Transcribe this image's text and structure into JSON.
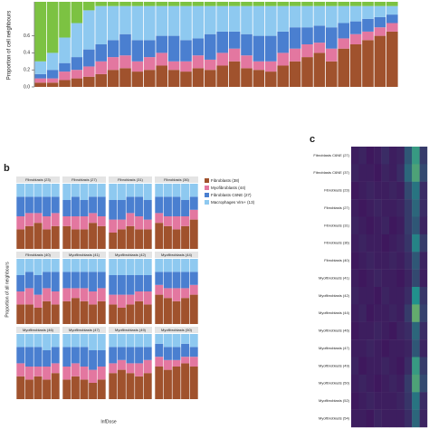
{
  "chart_data": [
    {
      "type": "bar",
      "stacked": true,
      "ylabel": "Proportion of cell neighbours",
      "categories": [
        null,
        null,
        null,
        null,
        null,
        null,
        null,
        null,
        null,
        null,
        null,
        null,
        null,
        null,
        null,
        null,
        null,
        null,
        null,
        null,
        null,
        null,
        null,
        null,
        null,
        null,
        null,
        null,
        null,
        null
      ],
      "series": [
        {
          "color": "#a0522d",
          "values": [
            0.05,
            0.05,
            0.08,
            0.1,
            0.12,
            0.15,
            0.2,
            0.22,
            0.18,
            0.2,
            0.25,
            0.2,
            0.18,
            0.22,
            0.2,
            0.25,
            0.3,
            0.22,
            0.2,
            0.18,
            0.25,
            0.3,
            0.35,
            0.4,
            0.3,
            0.45,
            0.5,
            0.55,
            0.6,
            0.65
          ]
        },
        {
          "color": "#e377a0",
          "values": [
            0.05,
            0.05,
            0.1,
            0.1,
            0.12,
            0.15,
            0.15,
            0.15,
            0.12,
            0.15,
            0.15,
            0.1,
            0.12,
            0.15,
            0.12,
            0.15,
            0.15,
            0.15,
            0.1,
            0.12,
            0.15,
            0.15,
            0.15,
            0.12,
            0.15,
            0.12,
            0.12,
            0.1,
            0.1,
            0.1
          ]
        },
        {
          "color": "#4a7fd0",
          "values": [
            0.05,
            0.1,
            0.1,
            0.15,
            0.2,
            0.2,
            0.2,
            0.25,
            0.25,
            0.2,
            0.2,
            0.3,
            0.25,
            0.2,
            0.3,
            0.25,
            0.2,
            0.25,
            0.3,
            0.3,
            0.25,
            0.25,
            0.2,
            0.2,
            0.25,
            0.18,
            0.15,
            0.15,
            0.12,
            0.1
          ]
        },
        {
          "color": "#8ec9f0",
          "values": [
            0.15,
            0.2,
            0.3,
            0.4,
            0.46,
            0.45,
            0.4,
            0.33,
            0.4,
            0.4,
            0.35,
            0.35,
            0.4,
            0.38,
            0.33,
            0.3,
            0.3,
            0.33,
            0.35,
            0.35,
            0.3,
            0.25,
            0.25,
            0.23,
            0.25,
            0.2,
            0.18,
            0.15,
            0.13,
            0.1
          ]
        },
        {
          "color": "#7cc242",
          "values": [
            0.7,
            0.6,
            0.42,
            0.25,
            0.1,
            0.05,
            0.05,
            0.05,
            0.05,
            0.05,
            0.05,
            0.05,
            0.05,
            0.05,
            0.05,
            0.05,
            0.05,
            0.05,
            0.05,
            0.05,
            0.05,
            0.05,
            0.05,
            0.05,
            0.05,
            0.05,
            0.05,
            0.05,
            0.05,
            0.05
          ]
        }
      ],
      "ylim": [
        0,
        1
      ],
      "yticks": [
        {
          "value": 0,
          "label": "0.0"
        },
        0.2,
        0.4,
        0.6
      ]
    },
    {
      "type": "bar-grid",
      "stacked": true,
      "panel_label": "b",
      "ylabel": "Proportion of all neighbours",
      "xlabel": "InfDose",
      "series": [
        {
          "name": "Fibroblasts (38)",
          "color": "#a0522d"
        },
        {
          "name": "Myofibroblasts (44)",
          "color": "#e377a0"
        },
        {
          "name": "Fibroblasts C6NE (27)",
          "color": "#4a7fd0"
        },
        {
          "name": "Macrophages Vim+ (13)",
          "color": "#8ec9f0"
        }
      ],
      "ylim": [
        0,
        1
      ],
      "panels": [
        {
          "title": "Fibroblasts (23)",
          "values": [
            [
              0.3,
              0.35,
              0.4,
              0.3,
              0.35
            ],
            [
              0.2,
              0.2,
              0.15,
              0.2,
              0.2
            ],
            [
              0.3,
              0.25,
              0.25,
              0.3,
              0.25
            ],
            [
              0.2,
              0.2,
              0.2,
              0.2,
              0.2
            ]
          ]
        },
        {
          "title": "Fibroblasts (27)",
          "values": [
            [
              0.35,
              0.3,
              0.3,
              0.4,
              0.35
            ],
            [
              0.15,
              0.2,
              0.2,
              0.15,
              0.15
            ],
            [
              0.25,
              0.3,
              0.25,
              0.25,
              0.3
            ],
            [
              0.25,
              0.2,
              0.25,
              0.2,
              0.2
            ]
          ]
        },
        {
          "title": "Fibroblasts (31)",
          "values": [
            [
              0.25,
              0.3,
              0.35,
              0.3,
              0.3
            ],
            [
              0.2,
              0.15,
              0.2,
              0.2,
              0.15
            ],
            [
              0.3,
              0.3,
              0.25,
              0.3,
              0.3
            ],
            [
              0.25,
              0.25,
              0.2,
              0.2,
              0.25
            ]
          ]
        },
        {
          "title": "Fibroblasts (36)",
          "values": [
            [
              0.4,
              0.35,
              0.3,
              0.35,
              0.45
            ],
            [
              0.15,
              0.15,
              0.2,
              0.15,
              0.15
            ],
            [
              0.25,
              0.3,
              0.3,
              0.25,
              0.2
            ],
            [
              0.2,
              0.2,
              0.2,
              0.25,
              0.2
            ]
          ]
        },
        {
          "title": "Fibroblasts (40)",
          "values": [
            [
              0.3,
              0.3,
              0.25,
              0.35,
              0.3
            ],
            [
              0.2,
              0.25,
              0.2,
              0.2,
              0.2
            ],
            [
              0.25,
              0.25,
              0.3,
              0.25,
              0.3
            ],
            [
              0.25,
              0.2,
              0.25,
              0.2,
              0.2
            ]
          ]
        },
        {
          "title": "Myofibroblasts (41)",
          "values": [
            [
              0.35,
              0.4,
              0.35,
              0.3,
              0.35
            ],
            [
              0.2,
              0.15,
              0.2,
              0.2,
              0.2
            ],
            [
              0.25,
              0.25,
              0.25,
              0.3,
              0.25
            ],
            [
              0.2,
              0.2,
              0.2,
              0.2,
              0.2
            ]
          ]
        },
        {
          "title": "Myofibroblasts (42)",
          "values": [
            [
              0.3,
              0.25,
              0.3,
              0.35,
              0.3
            ],
            [
              0.15,
              0.2,
              0.15,
              0.15,
              0.2
            ],
            [
              0.3,
              0.3,
              0.3,
              0.25,
              0.25
            ],
            [
              0.25,
              0.25,
              0.25,
              0.25,
              0.25
            ]
          ]
        },
        {
          "title": "Myofibroblasts (44)",
          "values": [
            [
              0.45,
              0.4,
              0.35,
              0.4,
              0.45
            ],
            [
              0.15,
              0.15,
              0.2,
              0.15,
              0.15
            ],
            [
              0.2,
              0.25,
              0.25,
              0.25,
              0.2
            ],
            [
              0.2,
              0.2,
              0.2,
              0.2,
              0.2
            ]
          ]
        },
        {
          "title": "Myofibroblasts (46)",
          "values": [
            [
              0.35,
              0.3,
              0.35,
              0.3,
              0.4
            ],
            [
              0.2,
              0.2,
              0.15,
              0.2,
              0.15
            ],
            [
              0.25,
              0.3,
              0.3,
              0.25,
              0.25
            ],
            [
              0.2,
              0.2,
              0.2,
              0.25,
              0.2
            ]
          ]
        },
        {
          "title": "Myofibroblasts (47)",
          "values": [
            [
              0.3,
              0.35,
              0.3,
              0.25,
              0.3
            ],
            [
              0.2,
              0.2,
              0.2,
              0.2,
              0.2
            ],
            [
              0.3,
              0.25,
              0.3,
              0.3,
              0.25
            ],
            [
              0.2,
              0.2,
              0.2,
              0.25,
              0.25
            ]
          ]
        },
        {
          "title": "Myofibroblasts (49)",
          "values": [
            [
              0.4,
              0.45,
              0.4,
              0.35,
              0.4
            ],
            [
              0.15,
              0.15,
              0.15,
              0.2,
              0.2
            ],
            [
              0.25,
              0.2,
              0.25,
              0.25,
              0.2
            ],
            [
              0.2,
              0.2,
              0.2,
              0.2,
              0.2
            ]
          ]
        },
        {
          "title": "Myofibroblasts (50)",
          "values": [
            [
              0.5,
              0.45,
              0.5,
              0.55,
              0.5
            ],
            [
              0.15,
              0.15,
              0.1,
              0.1,
              0.15
            ],
            [
              0.2,
              0.2,
              0.2,
              0.2,
              0.15
            ],
            [
              0.15,
              0.2,
              0.2,
              0.15,
              0.2
            ]
          ]
        }
      ]
    },
    {
      "type": "heatmap",
      "panel_label": "c",
      "colormap": [
        "#440154",
        "#21918c",
        "#fde725"
      ],
      "zlim": [
        0,
        1
      ],
      "rows": [
        "Fibroblasts C6NE (27)",
        "Fibroblasts C6NE (37)",
        "Fibroblasts (23)",
        "Fibroblasts (27)",
        "Fibroblasts (31)",
        "Fibroblasts (36)",
        "Fibroblasts (40)",
        "Myofibroblasts (41)",
        "Myofibroblasts (42)",
        "Myofibroblasts (44)",
        "Myofibroblasts (46)",
        "Myofibroblasts (47)",
        "Myofibroblasts (49)",
        "Myofibroblasts (50)",
        "Myofibroblasts (52)",
        "Myofibroblasts (54)"
      ],
      "values": [
        [
          0.1,
          0.12,
          0.08,
          0.1,
          0.15,
          0.1,
          0.12,
          0.3,
          0.55,
          0.2
        ],
        [
          0.12,
          0.1,
          0.1,
          0.08,
          0.12,
          0.1,
          0.15,
          0.35,
          0.6,
          0.25
        ],
        [
          0.08,
          0.1,
          0.12,
          0.1,
          0.1,
          0.12,
          0.1,
          0.25,
          0.4,
          0.15
        ],
        [
          0.1,
          0.08,
          0.1,
          0.12,
          0.1,
          0.1,
          0.12,
          0.2,
          0.35,
          0.15
        ],
        [
          0.12,
          0.1,
          0.08,
          0.1,
          0.12,
          0.08,
          0.1,
          0.2,
          0.3,
          0.12
        ],
        [
          0.1,
          0.12,
          0.1,
          0.1,
          0.08,
          0.1,
          0.12,
          0.18,
          0.45,
          0.2
        ],
        [
          0.08,
          0.1,
          0.12,
          0.1,
          0.1,
          0.12,
          0.1,
          0.15,
          0.3,
          0.12
        ],
        [
          0.1,
          0.08,
          0.1,
          0.12,
          0.1,
          0.1,
          0.08,
          0.12,
          0.25,
          0.1
        ],
        [
          0.12,
          0.1,
          0.1,
          0.08,
          0.12,
          0.1,
          0.1,
          0.15,
          0.5,
          0.18
        ],
        [
          0.1,
          0.12,
          0.08,
          0.1,
          0.1,
          0.12,
          0.1,
          0.2,
          0.65,
          0.22
        ],
        [
          0.08,
          0.1,
          0.1,
          0.12,
          0.1,
          0.08,
          0.12,
          0.15,
          0.35,
          0.15
        ],
        [
          0.1,
          0.1,
          0.12,
          0.1,
          0.08,
          0.1,
          0.1,
          0.12,
          0.3,
          0.12
        ],
        [
          0.12,
          0.08,
          0.1,
          0.1,
          0.12,
          0.1,
          0.08,
          0.15,
          0.55,
          0.2
        ],
        [
          0.1,
          0.12,
          0.1,
          0.08,
          0.1,
          0.12,
          0.1,
          0.2,
          0.6,
          0.25
        ],
        [
          0.08,
          0.1,
          0.12,
          0.1,
          0.1,
          0.1,
          0.12,
          0.18,
          0.4,
          0.15
        ],
        [
          0.1,
          0.1,
          0.08,
          0.12,
          0.1,
          0.1,
          0.1,
          0.15,
          0.35,
          0.12
        ]
      ]
    }
  ]
}
